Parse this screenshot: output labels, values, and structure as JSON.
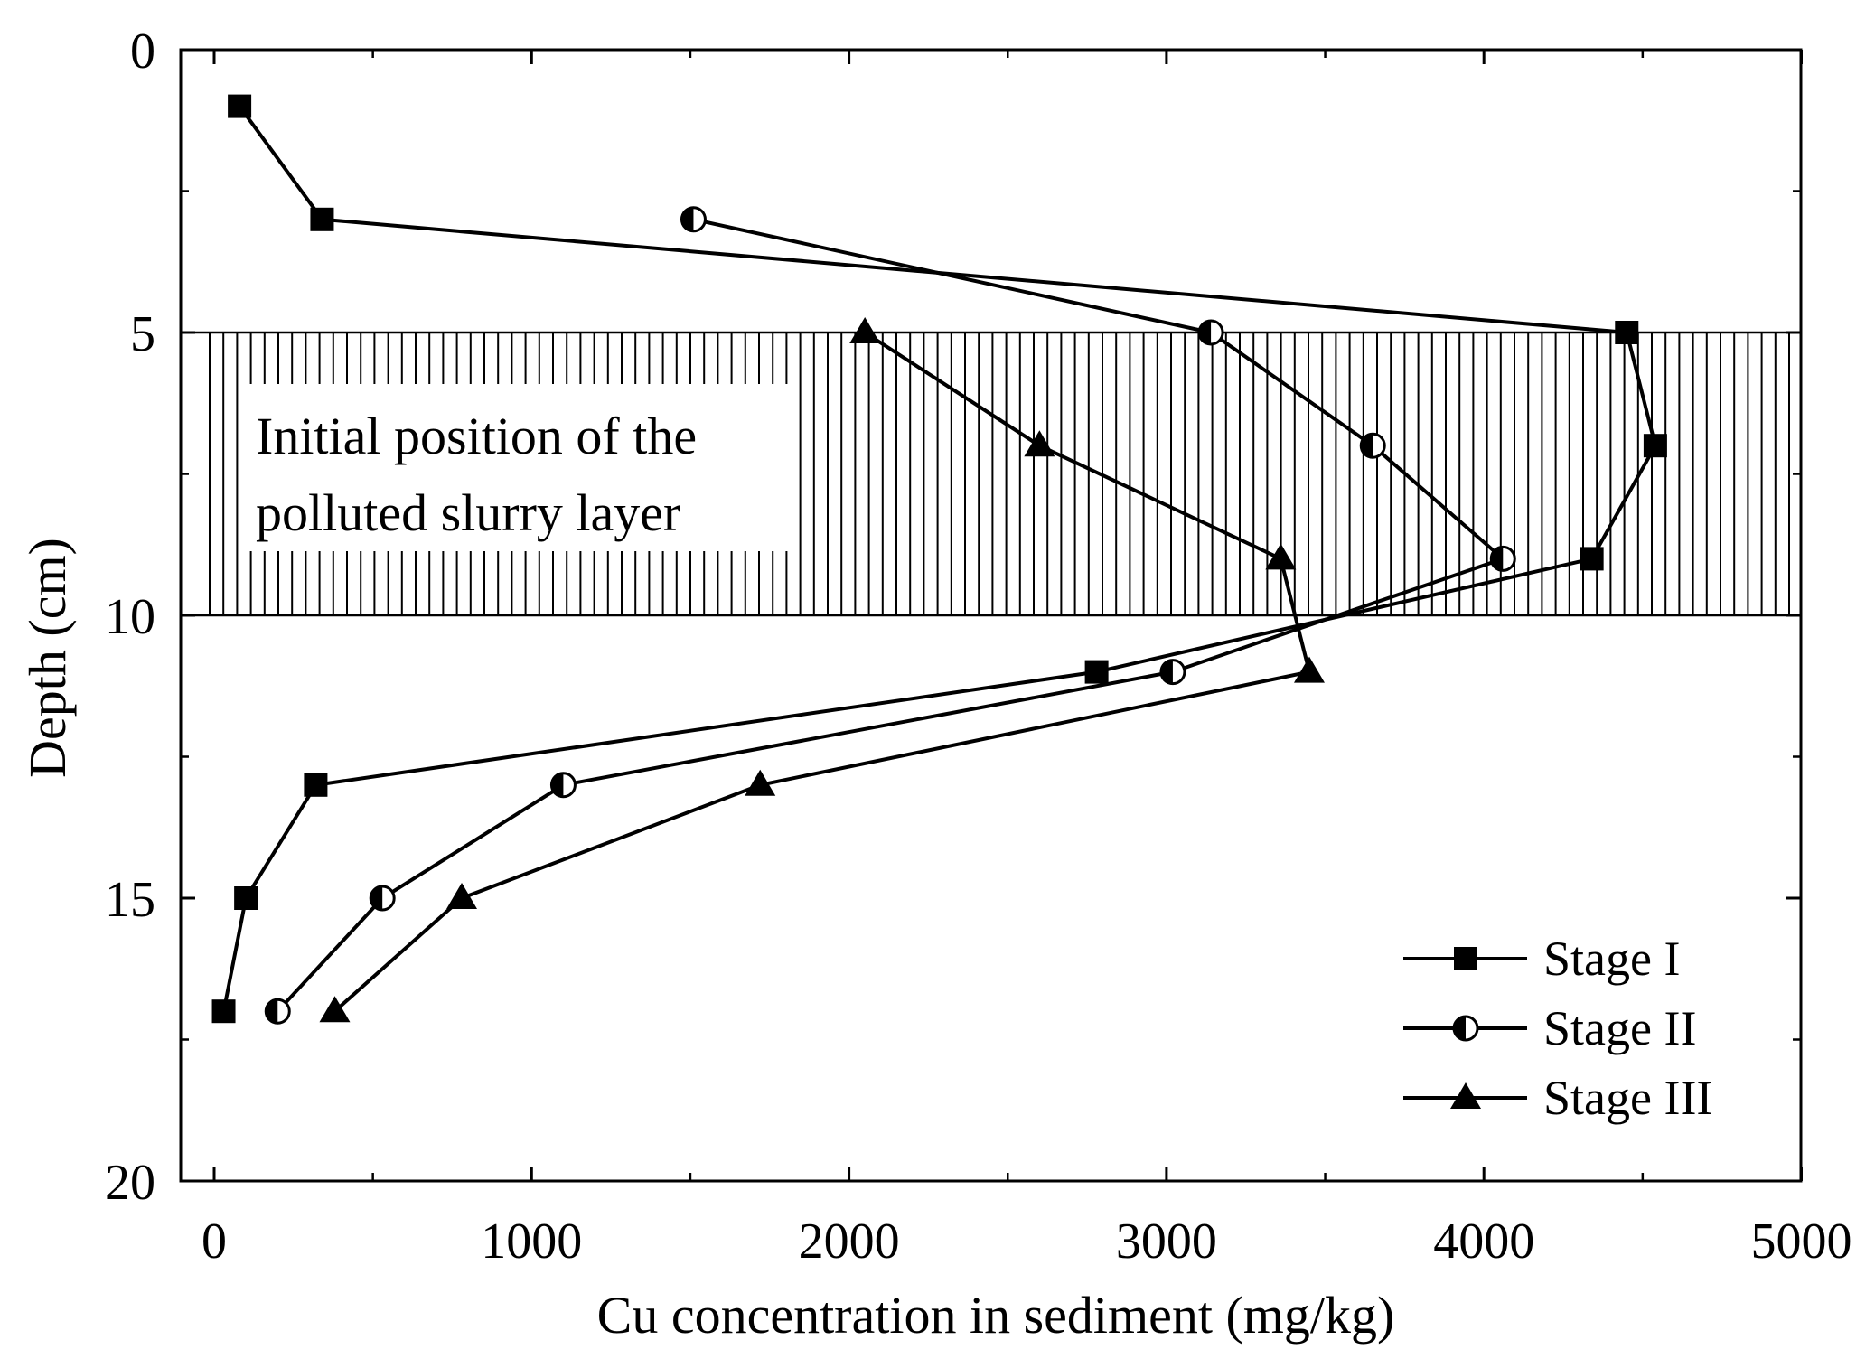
{
  "chart_data": {
    "type": "line",
    "orientation": "depth-profile",
    "xlabel": "Cu concentration in sediment (mg/kg)",
    "ylabel": "Depth (cm)",
    "xlim": [
      -100,
      5000
    ],
    "ylim": [
      0,
      20
    ],
    "y_inverted": true,
    "xticks": [
      0,
      1000,
      2000,
      3000,
      4000,
      5000
    ],
    "yticks": [
      0,
      5,
      10,
      15,
      20
    ],
    "shaded_band": {
      "y_range": [
        5,
        10
      ],
      "pattern": "vertical-hatch",
      "label_lines": [
        "Initial position of the",
        "polluted slurry layer"
      ]
    },
    "legend_position": "bottom-right",
    "series": [
      {
        "name": "Stage I",
        "marker": "square",
        "points": [
          [
            80,
            1
          ],
          [
            340,
            3
          ],
          [
            4450,
            5
          ],
          [
            4540,
            7
          ],
          [
            4340,
            9
          ],
          [
            2780,
            11
          ],
          [
            320,
            13
          ],
          [
            100,
            15
          ],
          [
            30,
            17
          ]
        ]
      },
      {
        "name": "Stage II",
        "marker": "half-filled-circle",
        "points": [
          [
            1510,
            3
          ],
          [
            3140,
            5
          ],
          [
            3650,
            7
          ],
          [
            4060,
            9
          ],
          [
            3020,
            11
          ],
          [
            1100,
            13
          ],
          [
            530,
            15
          ],
          [
            200,
            17
          ]
        ]
      },
      {
        "name": "Stage III",
        "marker": "triangle",
        "points": [
          [
            2050,
            5
          ],
          [
            2600,
            7
          ],
          [
            3360,
            9
          ],
          [
            3450,
            11
          ],
          [
            1720,
            13
          ],
          [
            780,
            15
          ],
          [
            380,
            17
          ]
        ]
      }
    ]
  }
}
